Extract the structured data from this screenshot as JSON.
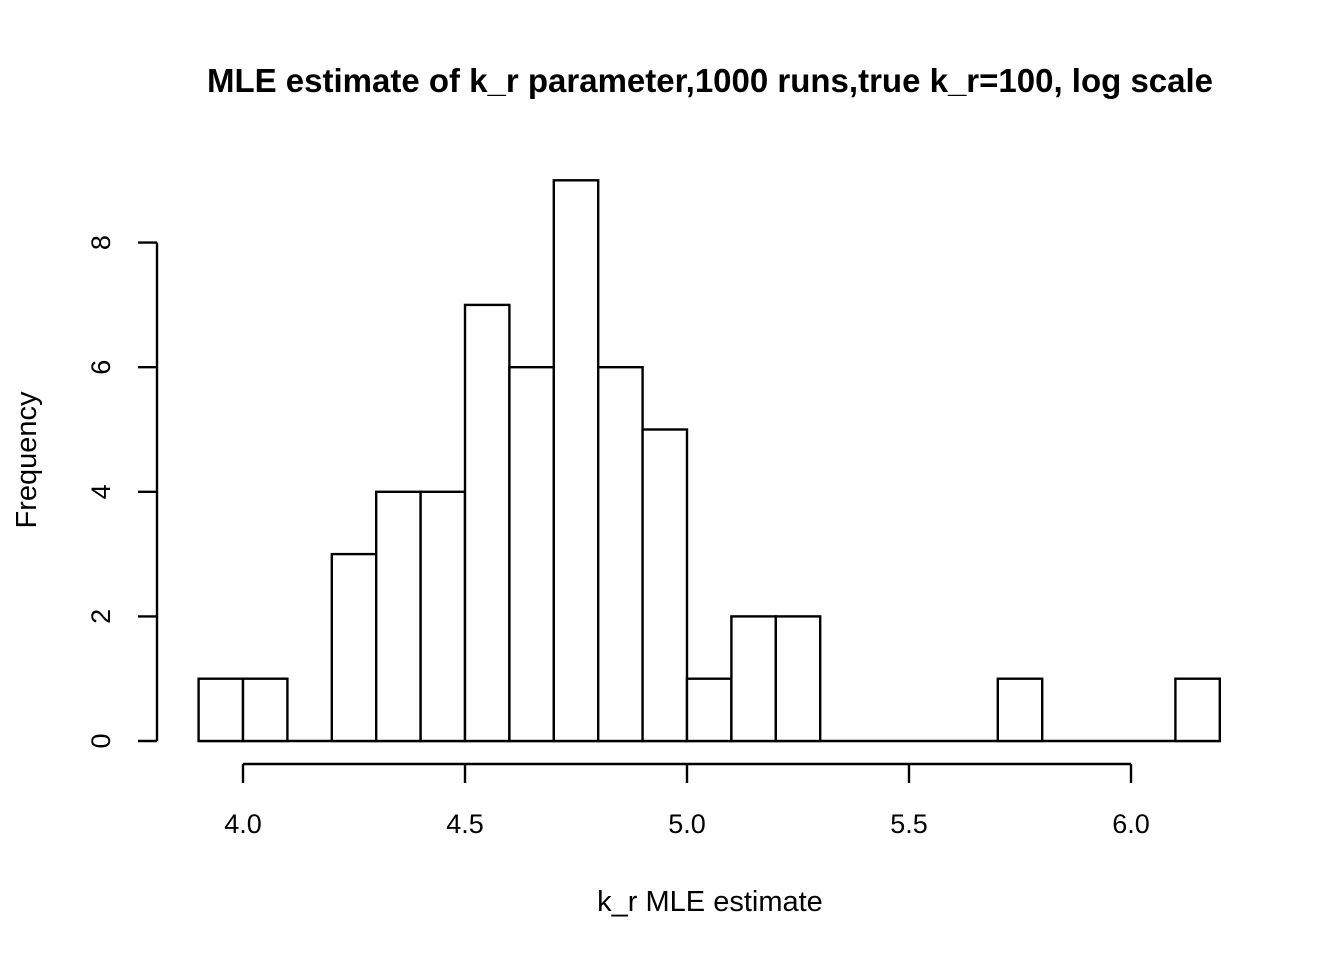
{
  "chart_data": {
    "type": "bar",
    "title": "MLE estimate of k_r parameter,1000 runs,true k_r=100, log scale",
    "xlabel": "k_r MLE estimate",
    "ylabel": "Frequency",
    "xlim": [
      3.9,
      6.2
    ],
    "ylim": [
      0,
      9
    ],
    "x_ticks": [
      "4.0",
      "4.5",
      "5.0",
      "5.5",
      "6.0"
    ],
    "y_ticks": [
      "0",
      "2",
      "4",
      "6",
      "8"
    ],
    "bin_width": 0.1,
    "bins": [
      {
        "start": 3.9,
        "end": 4.0,
        "count": 1
      },
      {
        "start": 4.0,
        "end": 4.1,
        "count": 1
      },
      {
        "start": 4.1,
        "end": 4.2,
        "count": 0
      },
      {
        "start": 4.2,
        "end": 4.3,
        "count": 3
      },
      {
        "start": 4.3,
        "end": 4.4,
        "count": 4
      },
      {
        "start": 4.4,
        "end": 4.5,
        "count": 4
      },
      {
        "start": 4.5,
        "end": 4.6,
        "count": 7
      },
      {
        "start": 4.6,
        "end": 4.7,
        "count": 6
      },
      {
        "start": 4.7,
        "end": 4.8,
        "count": 9
      },
      {
        "start": 4.8,
        "end": 4.9,
        "count": 6
      },
      {
        "start": 4.9,
        "end": 5.0,
        "count": 5
      },
      {
        "start": 5.0,
        "end": 5.1,
        "count": 1
      },
      {
        "start": 5.1,
        "end": 5.2,
        "count": 2
      },
      {
        "start": 5.2,
        "end": 5.3,
        "count": 2
      },
      {
        "start": 5.3,
        "end": 5.4,
        "count": 0
      },
      {
        "start": 5.4,
        "end": 5.5,
        "count": 0
      },
      {
        "start": 5.5,
        "end": 5.6,
        "count": 0
      },
      {
        "start": 5.6,
        "end": 5.7,
        "count": 0
      },
      {
        "start": 5.7,
        "end": 5.8,
        "count": 1
      },
      {
        "start": 5.8,
        "end": 5.9,
        "count": 0
      },
      {
        "start": 5.9,
        "end": 6.0,
        "count": 0
      },
      {
        "start": 6.0,
        "end": 6.1,
        "count": 0
      },
      {
        "start": 6.1,
        "end": 6.2,
        "count": 1
      }
    ],
    "grid": false,
    "legend": "none"
  }
}
